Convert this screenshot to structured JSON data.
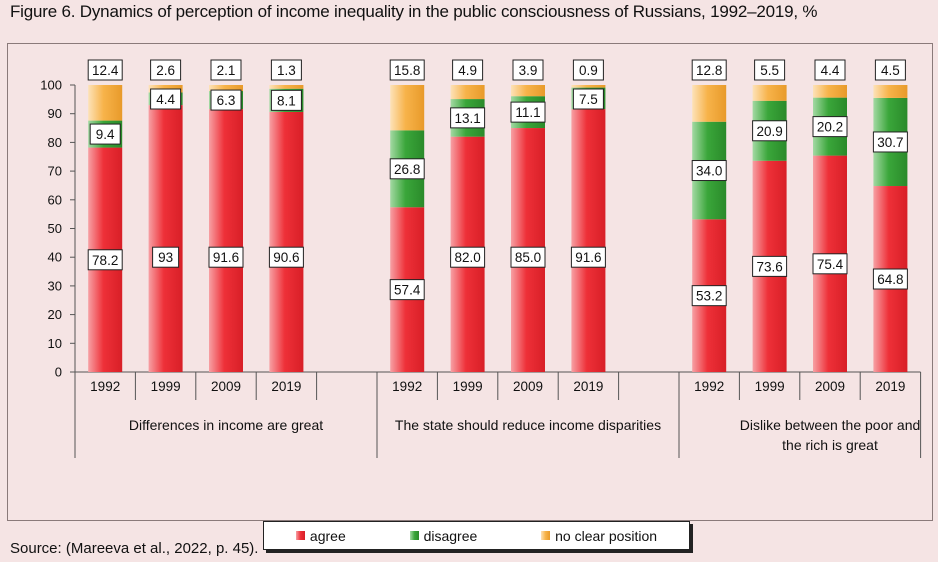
{
  "title": "Figure 6. Dynamics of perception of income inequality in the public consciousness of Russians, 1992–2019, %",
  "source": "Source: (Mareeva et al., 2022, p. 45).",
  "colors": {
    "agree": "#ee3038",
    "disagree": "#3aa63a",
    "no_clear_position": "#f7b34a"
  },
  "legend": {
    "agree": "agree",
    "disagree": "disagree",
    "no_clear_position": "no clear position"
  },
  "chart_data": {
    "type": "bar",
    "stacked": true,
    "ylim": [
      0,
      100
    ],
    "yticks": [
      0,
      10,
      20,
      30,
      40,
      50,
      60,
      70,
      80,
      90,
      100
    ],
    "grid": false,
    "legend_position": "bottom",
    "groups": [
      {
        "label": "Differences in income are great",
        "categories": [
          "1992",
          "1999",
          "2009",
          "2019"
        ],
        "series": [
          {
            "name": "agree",
            "values": [
              78.2,
              93,
              91.6,
              90.6
            ],
            "labels": [
              "78.2",
              "93",
              "91.6",
              "90.6"
            ]
          },
          {
            "name": "disagree",
            "values": [
              9.4,
              4.4,
              6.3,
              8.1
            ],
            "labels": [
              "9.4",
              "4.4",
              "6.3",
              "8.1"
            ]
          },
          {
            "name": "no clear position",
            "values": [
              12.4,
              2.6,
              2.1,
              1.3
            ],
            "labels": [
              "12.4",
              "2.6",
              "2.1",
              "1.3"
            ]
          }
        ]
      },
      {
        "label": "The state should reduce income disparities",
        "categories": [
          "1992",
          "1999",
          "2009",
          "2019"
        ],
        "series": [
          {
            "name": "agree",
            "values": [
              57.4,
              82.0,
              85.0,
              91.6
            ],
            "labels": [
              "57.4",
              "82.0",
              "85.0",
              "91.6"
            ]
          },
          {
            "name": "disagree",
            "values": [
              26.8,
              13.1,
              11.1,
              7.5
            ],
            "labels": [
              "26.8",
              "13.1",
              "11.1",
              "7.5"
            ]
          },
          {
            "name": "no clear position",
            "values": [
              15.8,
              4.9,
              3.9,
              0.9
            ],
            "labels": [
              "15.8",
              "4.9",
              "3.9",
              "0.9"
            ]
          }
        ]
      },
      {
        "label": "Dislike between the poor and the rich is great",
        "label_lines": [
          "Dislike between the poor and",
          "the rich is great"
        ],
        "categories": [
          "1992",
          "1999",
          "2009",
          "2019"
        ],
        "series": [
          {
            "name": "agree",
            "values": [
              53.2,
              73.6,
              75.4,
              64.8
            ],
            "labels": [
              "53.2",
              "73.6",
              "75.4",
              "64.8"
            ]
          },
          {
            "name": "disagree",
            "values": [
              34.0,
              20.9,
              20.2,
              30.7
            ],
            "labels": [
              "34.0",
              "20.9",
              "20.2",
              "30.7"
            ]
          },
          {
            "name": "no clear position",
            "values": [
              12.8,
              5.5,
              4.4,
              4.5
            ],
            "labels": [
              "12.8",
              "5.5",
              "4.4",
              "4.5"
            ]
          }
        ]
      }
    ]
  }
}
